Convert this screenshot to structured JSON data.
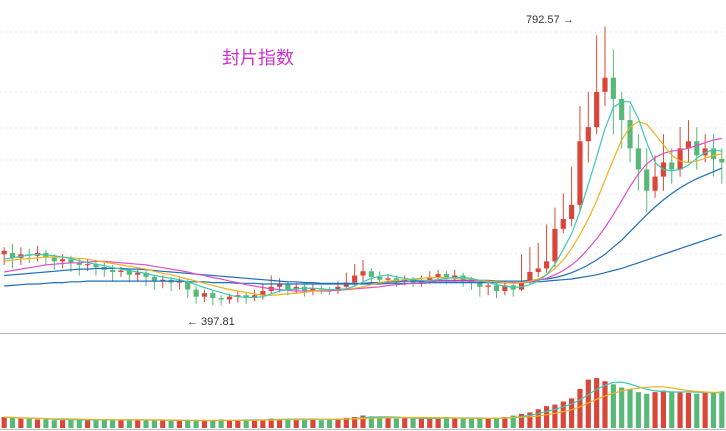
{
  "chart_data": {
    "type": "candlestick",
    "title": "封片指数",
    "title_color": "#cc33cc",
    "annotations": {
      "high": {
        "label": "792.57 →",
        "value": 792.57
      },
      "low": {
        "label": "← 397.81",
        "value": 397.81
      }
    },
    "colors": {
      "up": "#d9473b",
      "down": "#58b877",
      "ma5": "#3cc8b4",
      "ma10": "#f2b11b",
      "ma20": "#e04fc8",
      "ma30": "#1f6fb8",
      "ma60": "#1f6fb8"
    },
    "price_range": [
      360,
      830
    ],
    "volume_range": [
      0,
      100
    ],
    "grid": true,
    "candles": [
      [
        470,
        475,
        480,
        455
      ],
      [
        472,
        465,
        485,
        450
      ],
      [
        465,
        470,
        480,
        455
      ],
      [
        470,
        468,
        478,
        458
      ],
      [
        468,
        472,
        482,
        460
      ],
      [
        472,
        466,
        476,
        455
      ],
      [
        466,
        460,
        470,
        448
      ],
      [
        460,
        463,
        470,
        450
      ],
      [
        463,
        458,
        468,
        445
      ],
      [
        458,
        455,
        465,
        440
      ],
      [
        455,
        456,
        464,
        446
      ],
      [
        456,
        452,
        460,
        440
      ],
      [
        452,
        448,
        458,
        438
      ],
      [
        448,
        445,
        455,
        432
      ],
      [
        445,
        447,
        452,
        438
      ],
      [
        447,
        441,
        450,
        430
      ],
      [
        441,
        444,
        448,
        432
      ],
      [
        444,
        438,
        446,
        425
      ],
      [
        438,
        432,
        440,
        420
      ],
      [
        432,
        434,
        440,
        422
      ],
      [
        434,
        430,
        438,
        418
      ],
      [
        430,
        432,
        436,
        420
      ],
      [
        432,
        420,
        435,
        408
      ],
      [
        420,
        410,
        425,
        400
      ],
      [
        410,
        415,
        420,
        402
      ],
      [
        415,
        408,
        418,
        398
      ],
      [
        408,
        406,
        412,
        397.81
      ],
      [
        406,
        410,
        414,
        400
      ],
      [
        410,
        412,
        418,
        402
      ],
      [
        412,
        408,
        416,
        400
      ],
      [
        408,
        412,
        420,
        404
      ],
      [
        412,
        418,
        428,
        406
      ],
      [
        418,
        424,
        440,
        414
      ],
      [
        424,
        428,
        436,
        416
      ],
      [
        428,
        420,
        432,
        412
      ],
      [
        420,
        424,
        430,
        414
      ],
      [
        424,
        418,
        428,
        410
      ],
      [
        418,
        422,
        428,
        412
      ],
      [
        422,
        420,
        426,
        414
      ],
      [
        420,
        418,
        424,
        412
      ],
      [
        418,
        424,
        432,
        414
      ],
      [
        424,
        430,
        444,
        420
      ],
      [
        430,
        440,
        456,
        426
      ],
      [
        440,
        446,
        462,
        432
      ],
      [
        446,
        438,
        450,
        430
      ],
      [
        438,
        434,
        446,
        428
      ],
      [
        434,
        436,
        442,
        428
      ],
      [
        436,
        432,
        440,
        424
      ],
      [
        432,
        434,
        440,
        426
      ],
      [
        434,
        430,
        438,
        424
      ],
      [
        430,
        432,
        440,
        424
      ],
      [
        432,
        438,
        446,
        428
      ],
      [
        438,
        442,
        448,
        432
      ],
      [
        442,
        436,
        446,
        428
      ],
      [
        436,
        440,
        448,
        430
      ],
      [
        440,
        434,
        444,
        424
      ],
      [
        434,
        430,
        438,
        420
      ],
      [
        430,
        424,
        434,
        410
      ],
      [
        424,
        426,
        432,
        412
      ],
      [
        426,
        418,
        430,
        408
      ],
      [
        418,
        426,
        432,
        412
      ],
      [
        426,
        420,
        430,
        410
      ],
      [
        420,
        430,
        470,
        418
      ],
      [
        430,
        445,
        480,
        428
      ],
      [
        445,
        450,
        486,
        438
      ],
      [
        450,
        460,
        512,
        444
      ],
      [
        460,
        506,
        536,
        452
      ],
      [
        506,
        520,
        556,
        500
      ],
      [
        520,
        540,
        594,
        510
      ],
      [
        540,
        630,
        680,
        530
      ],
      [
        630,
        650,
        700,
        600
      ],
      [
        650,
        700,
        780,
        640
      ],
      [
        700,
        720,
        792.57,
        680
      ],
      [
        720,
        690,
        760,
        640
      ],
      [
        690,
        660,
        700,
        620
      ],
      [
        660,
        620,
        680,
        600
      ],
      [
        620,
        590,
        640,
        560
      ],
      [
        590,
        560,
        620,
        530
      ],
      [
        560,
        580,
        610,
        550
      ],
      [
        580,
        600,
        640,
        560
      ],
      [
        600,
        590,
        620,
        570
      ],
      [
        590,
        620,
        650,
        580
      ],
      [
        620,
        630,
        660,
        600
      ],
      [
        630,
        610,
        650,
        590
      ],
      [
        610,
        620,
        640,
        600
      ],
      [
        620,
        605,
        640,
        580
      ],
      [
        605,
        600,
        620,
        570
      ]
    ],
    "ma5": [
      463,
      465,
      467,
      469,
      470,
      469,
      468,
      466,
      464,
      461,
      458,
      456,
      454,
      451,
      449,
      447,
      445,
      443,
      440,
      438,
      436,
      434,
      431,
      427,
      423,
      419,
      416,
      412,
      410,
      409,
      409,
      410,
      414,
      418,
      420,
      421,
      422,
      422,
      421,
      420,
      420,
      421,
      425,
      431,
      436,
      439,
      441,
      438,
      436,
      434,
      433,
      433,
      434,
      436,
      437,
      437,
      436,
      433,
      430,
      427,
      425,
      423,
      424,
      427,
      432,
      441,
      456,
      477,
      499,
      531,
      569,
      608,
      648,
      678,
      686,
      686,
      662,
      628,
      600,
      590,
      588,
      590,
      596,
      606,
      614,
      618,
      616
    ],
    "ma10": [
      460,
      462,
      463,
      464,
      465,
      466,
      466,
      466,
      465,
      464,
      463,
      461,
      459,
      457,
      455,
      453,
      451,
      449,
      446,
      443,
      441,
      438,
      435,
      432,
      429,
      426,
      423,
      420,
      418,
      416,
      414,
      412,
      412,
      413,
      414,
      415,
      416,
      418,
      419,
      420,
      420,
      421,
      422,
      424,
      427,
      430,
      432,
      433,
      434,
      435,
      436,
      437,
      437,
      437,
      436,
      436,
      435,
      433,
      432,
      431,
      430,
      429,
      430,
      432,
      435,
      441,
      450,
      462,
      478,
      498,
      520,
      546,
      575,
      604,
      632,
      650,
      658,
      654,
      640,
      625,
      610,
      602,
      600,
      602,
      606,
      610,
      612
    ],
    "ma20": [
      445,
      447,
      449,
      451,
      453,
      455,
      456,
      457,
      458,
      458,
      459,
      460,
      460,
      459,
      458,
      457,
      456,
      455,
      453,
      451,
      449,
      447,
      445,
      442,
      440,
      437,
      435,
      432,
      430,
      427,
      425,
      423,
      421,
      420,
      419,
      418,
      418,
      418,
      418,
      418,
      419,
      420,
      421,
      422,
      423,
      424,
      426,
      427,
      428,
      429,
      430,
      431,
      432,
      432,
      432,
      432,
      432,
      432,
      431,
      431,
      430,
      430,
      430,
      431,
      433,
      436,
      441,
      447,
      455,
      465,
      478,
      492,
      508,
      526,
      546,
      566,
      584,
      598,
      607,
      613,
      616,
      618,
      620,
      624,
      628,
      632,
      634
    ],
    "ma30": [
      440,
      441,
      442,
      443,
      444,
      445,
      446,
      447,
      448,
      449,
      449,
      450,
      450,
      450,
      450,
      449,
      449,
      448,
      447,
      446,
      445,
      444,
      443,
      442,
      441,
      440,
      439,
      438,
      437,
      436,
      435,
      434,
      433,
      432,
      431,
      431,
      430,
      430,
      429,
      429,
      429,
      429,
      429,
      429,
      430,
      430,
      431,
      431,
      432,
      432,
      432,
      433,
      433,
      433,
      433,
      433,
      433,
      433,
      433,
      432,
      432,
      432,
      432,
      433,
      434,
      435,
      437,
      440,
      444,
      449,
      455,
      462,
      470,
      480,
      490,
      502,
      514,
      526,
      537,
      547,
      556,
      564,
      571,
      577,
      582,
      587,
      592
    ],
    "ma60": [
      425,
      426,
      427,
      428,
      428,
      429,
      430,
      430,
      431,
      431,
      432,
      432,
      432,
      432,
      432,
      432,
      432,
      432,
      432,
      432,
      432,
      432,
      431,
      431,
      431,
      430,
      430,
      430,
      429,
      429,
      429,
      428,
      428,
      428,
      428,
      428,
      428,
      428,
      428,
      428,
      428,
      428,
      428,
      428,
      428,
      428,
      429,
      429,
      429,
      429,
      429,
      430,
      430,
      430,
      430,
      430,
      430,
      430,
      430,
      430,
      430,
      430,
      430,
      431,
      431,
      432,
      433,
      434,
      435,
      437,
      439,
      441,
      444,
      447,
      450,
      454,
      458,
      462,
      466,
      470,
      474,
      478,
      482,
      486,
      490,
      494,
      498
    ],
    "volume": [
      14,
      13,
      12,
      12,
      11,
      11,
      10,
      10,
      11,
      10,
      11,
      10,
      11,
      10,
      10,
      11,
      10,
      10,
      10,
      10,
      9,
      10,
      10,
      9,
      9,
      10,
      11,
      9,
      10,
      11,
      10,
      11,
      12,
      11,
      12,
      11,
      11,
      12,
      10,
      11,
      12,
      13,
      14,
      16,
      15,
      14,
      13,
      12,
      13,
      12,
      12,
      12,
      13,
      14,
      13,
      12,
      12,
      13,
      12,
      13,
      14,
      16,
      18,
      20,
      24,
      28,
      30,
      34,
      38,
      50,
      62,
      64,
      60,
      56,
      52,
      50,
      46,
      44,
      46,
      48,
      47,
      46,
      45,
      44,
      45,
      46,
      47
    ]
  }
}
